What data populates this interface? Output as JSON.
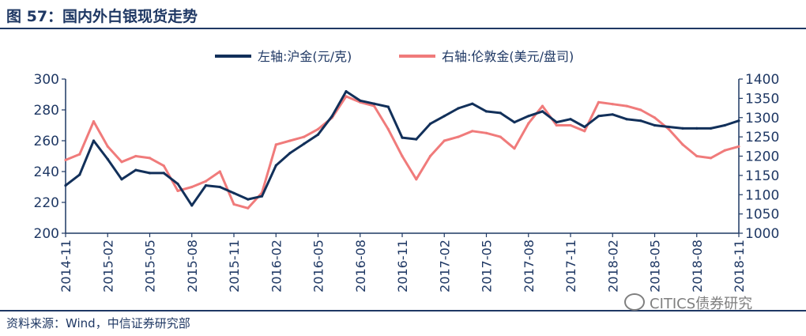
{
  "figure": {
    "title": "图 57：国内外白银现货走势",
    "source": "资料来源：Wind，中信证券研究部",
    "watermark": "CITICS债券研究"
  },
  "colors": {
    "left_series": "#12305a",
    "right_series": "#f07b7b",
    "axis": "#1f3864"
  },
  "chart_data": {
    "type": "line",
    "xlabel": "",
    "ylabel_left": "",
    "ylabel_right": "",
    "grid": false,
    "legend_position": "top-center",
    "x_ticks": [
      "2014-11",
      "2015-02",
      "2015-05",
      "2015-08",
      "2015-11",
      "2016-02",
      "2016-05",
      "2016-08",
      "2016-11",
      "2017-02",
      "2017-05",
      "2017-08",
      "2017-11",
      "2018-02",
      "2018-05",
      "2018-08",
      "2018-11"
    ],
    "y_left": {
      "lim": [
        200,
        300
      ],
      "ticks": [
        200,
        220,
        240,
        260,
        280,
        300
      ]
    },
    "y_right": {
      "lim": [
        1000,
        1400
      ],
      "ticks": [
        1000,
        1050,
        1100,
        1150,
        1200,
        1250,
        1300,
        1350,
        1400
      ]
    },
    "series": [
      {
        "name": "左轴:沪金(元/克)",
        "axis": "left",
        "x": [
          "2014-11",
          "2014-12",
          "2015-01",
          "2015-02",
          "2015-03",
          "2015-04",
          "2015-05",
          "2015-06",
          "2015-07",
          "2015-08",
          "2015-09",
          "2015-10",
          "2015-11",
          "2015-12",
          "2016-01",
          "2016-02",
          "2016-03",
          "2016-04",
          "2016-05",
          "2016-06",
          "2016-07",
          "2016-08",
          "2016-09",
          "2016-10",
          "2016-11",
          "2016-12",
          "2017-01",
          "2017-02",
          "2017-03",
          "2017-04",
          "2017-05",
          "2017-06",
          "2017-07",
          "2017-08",
          "2017-09",
          "2017-10",
          "2017-11",
          "2017-12",
          "2018-01",
          "2018-02",
          "2018-03",
          "2018-04",
          "2018-05",
          "2018-06",
          "2018-07",
          "2018-08",
          "2018-09",
          "2018-10",
          "2018-11"
        ],
        "y": [
          231,
          238,
          260,
          248,
          235,
          241,
          239,
          239,
          232,
          218,
          231,
          230,
          226,
          222,
          224,
          244,
          252,
          258,
          264,
          276,
          292,
          286,
          284,
          282,
          262,
          261,
          271,
          276,
          281,
          284,
          279,
          278,
          272,
          276,
          279,
          272,
          274,
          269,
          276,
          277,
          274,
          273,
          270,
          269,
          268,
          268,
          268,
          270,
          273
        ]
      },
      {
        "name": "右轴:伦敦金(美元/盘司)",
        "axis": "right",
        "x": [
          "2014-11",
          "2014-12",
          "2015-01",
          "2015-02",
          "2015-03",
          "2015-04",
          "2015-05",
          "2015-06",
          "2015-07",
          "2015-08",
          "2015-09",
          "2015-10",
          "2015-11",
          "2015-12",
          "2016-01",
          "2016-02",
          "2016-03",
          "2016-04",
          "2016-05",
          "2016-06",
          "2016-07",
          "2016-08",
          "2016-09",
          "2016-10",
          "2016-11",
          "2016-12",
          "2017-01",
          "2017-02",
          "2017-03",
          "2017-04",
          "2017-05",
          "2017-06",
          "2017-07",
          "2017-08",
          "2017-09",
          "2017-10",
          "2017-11",
          "2017-12",
          "2018-01",
          "2018-02",
          "2018-03",
          "2018-04",
          "2018-05",
          "2018-06",
          "2018-07",
          "2018-08",
          "2018-09",
          "2018-10",
          "2018-11"
        ],
        "y": [
          1190,
          1205,
          1290,
          1225,
          1185,
          1200,
          1195,
          1175,
          1110,
          1120,
          1135,
          1160,
          1075,
          1065,
          1105,
          1230,
          1240,
          1250,
          1270,
          1300,
          1355,
          1340,
          1330,
          1270,
          1200,
          1140,
          1200,
          1240,
          1250,
          1265,
          1260,
          1250,
          1220,
          1285,
          1330,
          1280,
          1280,
          1265,
          1340,
          1335,
          1330,
          1320,
          1300,
          1270,
          1230,
          1200,
          1195,
          1215,
          1225
        ]
      }
    ]
  }
}
